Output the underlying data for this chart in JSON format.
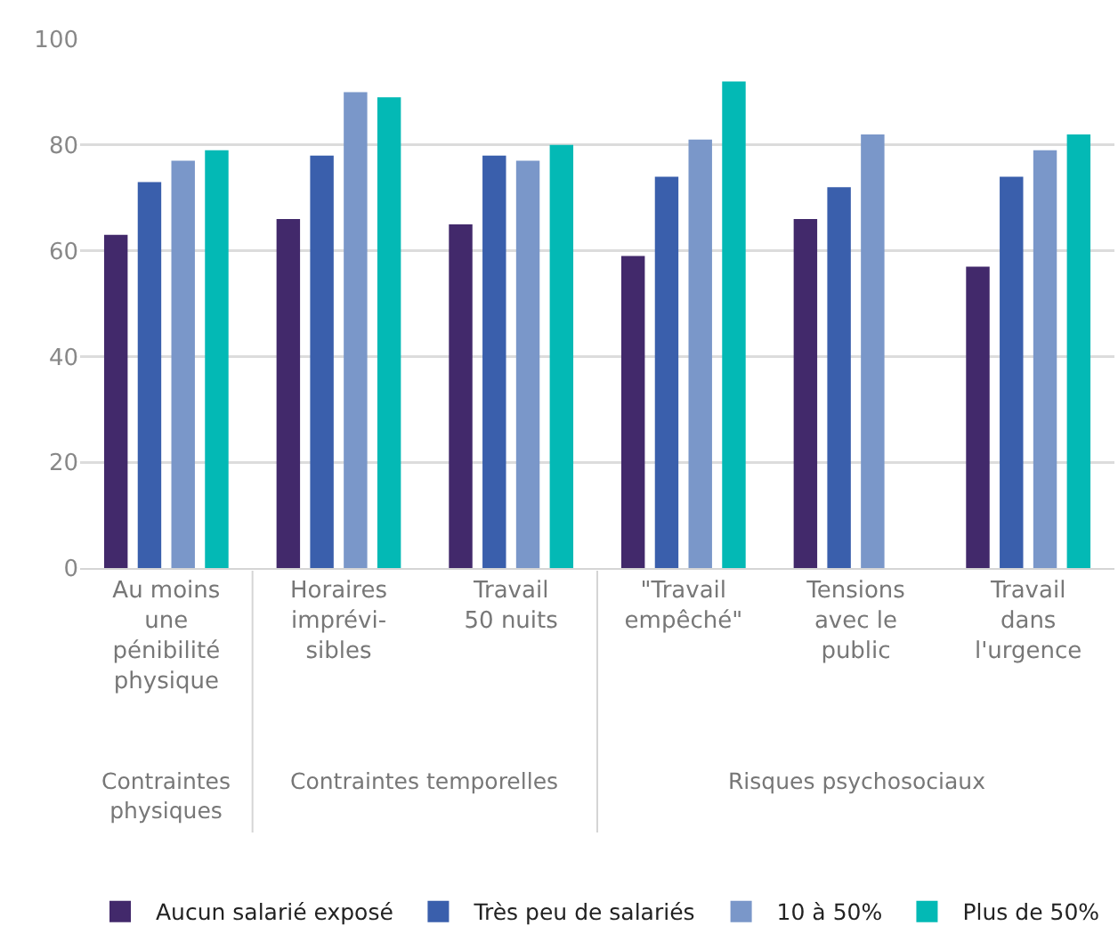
{
  "chart_data": {
    "type": "bar",
    "categories": [
      "Au moins\nune\npénibilité\nphysique",
      "Horaires\nimprévi-\nsibles",
      "Travail\n50 nuits",
      "\"Travail\nempêché\"",
      "Tensions\navec le\npublic",
      "Travail\ndans\nl'urgence"
    ],
    "series": [
      {
        "name": "Aucun salarié exposé",
        "color": "#42296b",
        "values": [
          63,
          66,
          65,
          59,
          66,
          57
        ]
      },
      {
        "name": "Très peu de salariés",
        "color": "#3a5fac",
        "values": [
          73,
          78,
          78,
          74,
          72,
          74
        ]
      },
      {
        "name": "10 à 50%",
        "color": "#7a97c9",
        "values": [
          77,
          90,
          77,
          81,
          82,
          79
        ]
      },
      {
        "name": "Plus de 50%",
        "color": "#03b9b5",
        "values": [
          79,
          89,
          80,
          92,
          null,
          82
        ]
      }
    ],
    "ylim": [
      0,
      100
    ],
    "yticks": [
      0,
      20,
      40,
      60,
      80,
      100
    ],
    "grid": "y",
    "legend": "bottom",
    "annotations": [
      "Contraintes\nphysiques",
      "Contraintes temporelles",
      "Risques psychosociaux"
    ]
  }
}
